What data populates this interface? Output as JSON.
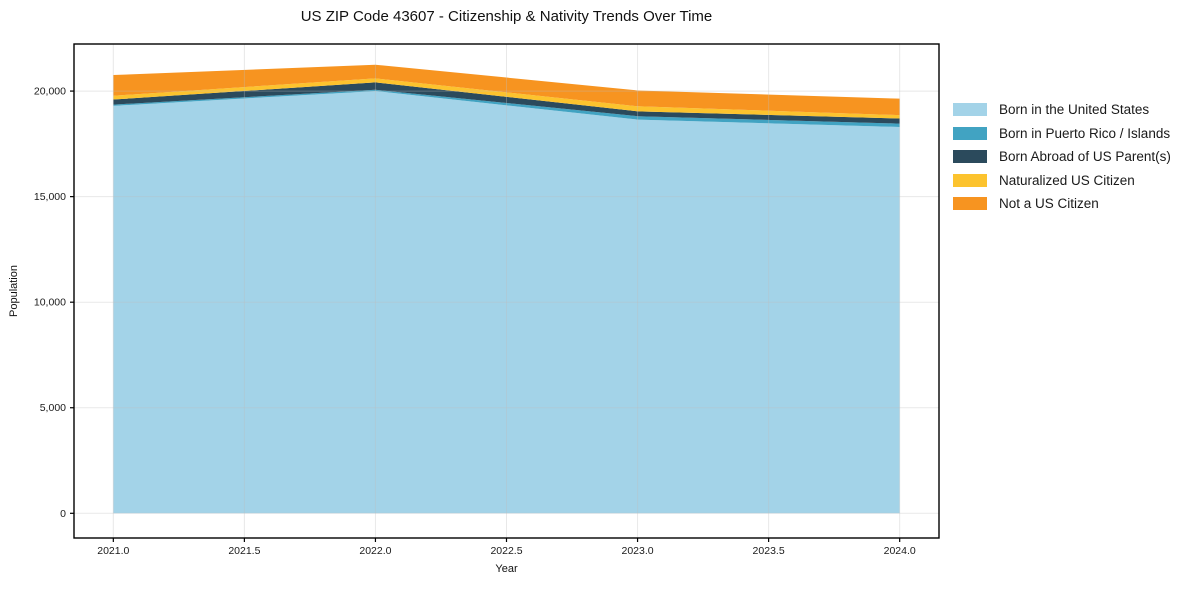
{
  "chart_data": {
    "type": "area",
    "stacked": true,
    "title": "US ZIP Code 43607 - Citizenship & Nativity Trends Over Time",
    "xlabel": "Year",
    "ylabel": "Population",
    "x": [
      2021,
      2022,
      2023,
      2024
    ],
    "series": [
      {
        "name": "Born in the United States",
        "color": "#a3d3e8",
        "values": [
          19300,
          20000,
          18650,
          18300
        ]
      },
      {
        "name": "Born in Puerto Rico / Islands",
        "color": "#41a3c2",
        "values": [
          60,
          60,
          160,
          160
        ]
      },
      {
        "name": "Born Abroad of US Parent(s)",
        "color": "#2b4a5c",
        "values": [
          240,
          350,
          230,
          240
        ]
      },
      {
        "name": "Naturalized US Citizen",
        "color": "#fcc32e",
        "values": [
          180,
          190,
          240,
          160
        ]
      },
      {
        "name": "Not a US Citizen",
        "color": "#f79420",
        "values": [
          980,
          650,
          750,
          780
        ]
      }
    ],
    "xlim": [
      2020.85,
      2024.15
    ],
    "ylim": [
      -1170,
      22230
    ],
    "xticks": {
      "values": [
        2021,
        2021.5,
        2022,
        2022.5,
        2023,
        2023.5,
        2024
      ],
      "labels": [
        "2021.0",
        "2021.5",
        "2022.0",
        "2022.5",
        "2023.0",
        "2023.5",
        "2024.0"
      ]
    },
    "yticks": {
      "values": [
        0,
        5000,
        10000,
        15000,
        20000
      ],
      "labels": [
        "0",
        "5,000",
        "10,000",
        "15,000",
        "20,000"
      ]
    },
    "grid": true,
    "legend_position": "right"
  },
  "colors": {
    "background": "#ffffff",
    "frame": "#000000",
    "gridline": "#bebebe",
    "tick_text": "#1a1a1a"
  }
}
